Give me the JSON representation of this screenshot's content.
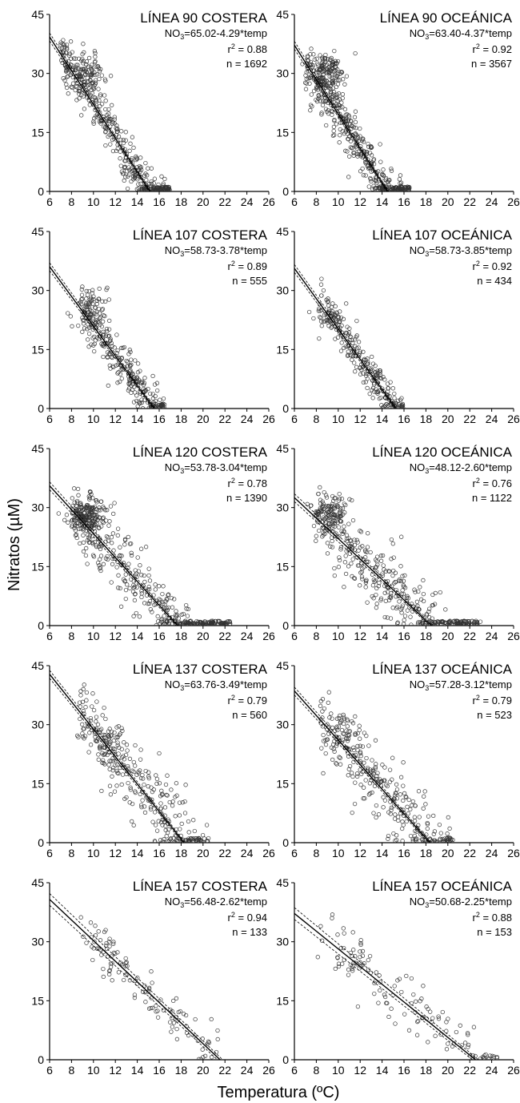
{
  "figure": {
    "ylabel": "Nitratos (µM)",
    "xlabel": "Temperatura (ºC)",
    "eq_prefix": "NO",
    "eq_sub": "3",
    "r_prefix": "r",
    "r_sup": "2",
    "n_prefix": "n = ",
    "colors": {
      "point": "#333333",
      "line": "#000000",
      "axis": "#000000"
    }
  },
  "chart_data": [
    {
      "type": "scatter",
      "title": "LÍNEA 90 COSTERA",
      "equation": "=65.02-4.29*temp",
      "intercept": 65.02,
      "slope": -4.29,
      "r2": "0.88",
      "n": "1692",
      "x_range": [
        6,
        26
      ],
      "y_range": [
        0,
        45
      ],
      "x_ticks": [
        6,
        8,
        10,
        12,
        14,
        16,
        18,
        20,
        22,
        24,
        26
      ],
      "y_ticks": [
        0,
        15,
        30,
        45
      ],
      "spread": [
        7,
        17
      ],
      "band": 1.0,
      "cloud": {
        "xmin": 7.0,
        "xmax": 17.0,
        "sd": 3.5,
        "count": 450,
        "cluster": [
          9.5,
          30,
          20
        ]
      }
    },
    {
      "type": "scatter",
      "title": "LÍNEA 90 OCEÁNICA",
      "equation": "=63.40-4.37*temp",
      "intercept": 63.4,
      "slope": -4.37,
      "r2": "0.92",
      "n": "3567",
      "x_range": [
        6,
        26
      ],
      "y_range": [
        0,
        45
      ],
      "x_ticks": [
        6,
        8,
        10,
        12,
        14,
        16,
        18,
        20,
        22,
        24,
        26
      ],
      "y_ticks": [
        0,
        15,
        30,
        45
      ],
      "spread": [
        7,
        16.5
      ],
      "band": 1.0,
      "cloud": {
        "xmin": 7.0,
        "xmax": 16.5,
        "sd": 3.3,
        "count": 550,
        "cluster": [
          9.0,
          30,
          25
        ]
      }
    },
    {
      "type": "scatter",
      "title": "LÍNEA 107 COSTERA",
      "equation": "=58.73-3.78*temp",
      "intercept": 58.73,
      "slope": -3.78,
      "r2": "0.89",
      "n": "555",
      "x_range": [
        6,
        26
      ],
      "y_range": [
        0,
        45
      ],
      "x_ticks": [
        6,
        8,
        10,
        12,
        14,
        16,
        18,
        20,
        22,
        24,
        26
      ],
      "y_ticks": [
        0,
        15,
        30,
        45
      ],
      "spread": [
        8.8,
        16.5
      ],
      "band": 1.0,
      "cloud": {
        "xmin": 8.8,
        "xmax": 16.5,
        "sd": 2.8,
        "count": 320,
        "cluster": [
          9.8,
          26,
          20
        ]
      }
    },
    {
      "type": "scatter",
      "title": "LÍNEA 107 OCEÁNICA",
      "equation": "=58.73-3.85*temp",
      "intercept": 58.73,
      "slope": -3.85,
      "r2": "0.92",
      "n": "434",
      "x_range": [
        6,
        26
      ],
      "y_range": [
        0,
        45
      ],
      "x_ticks": [
        6,
        8,
        10,
        12,
        14,
        16,
        18,
        20,
        22,
        24,
        26
      ],
      "y_ticks": [
        0,
        15,
        30,
        45
      ],
      "spread": [
        8.2,
        16
      ],
      "band": 1.0,
      "cloud": {
        "xmin": 8.2,
        "xmax": 16.0,
        "sd": 2.5,
        "count": 260,
        "cluster": [
          9.5,
          24,
          10
        ]
      }
    },
    {
      "type": "scatter",
      "title": "LÍNEA 120 COSTERA",
      "equation": "=53.78-3.04*temp",
      "intercept": 53.78,
      "slope": -3.04,
      "r2": "0.78",
      "n": "1390",
      "x_range": [
        6,
        26
      ],
      "y_range": [
        0,
        45
      ],
      "x_ticks": [
        6,
        8,
        10,
        12,
        14,
        16,
        18,
        20,
        22,
        24,
        26
      ],
      "y_ticks": [
        0,
        15,
        30,
        45
      ],
      "spread": [
        8,
        22.5
      ],
      "band": 1.0,
      "cloud": {
        "xmin": 8.0,
        "xmax": 22.5,
        "sd": 4.2,
        "count": 550,
        "cluster": [
          9.5,
          28,
          30
        ]
      }
    },
    {
      "type": "scatter",
      "title": "LÍNEA 120 OCEÁNICA",
      "equation": "=48.12-2.60*temp",
      "intercept": 48.12,
      "slope": -2.6,
      "r2": "0.76",
      "n": "1122",
      "x_range": [
        6,
        26
      ],
      "y_range": [
        0,
        45
      ],
      "x_ticks": [
        6,
        8,
        10,
        12,
        14,
        16,
        18,
        20,
        22,
        24,
        26
      ],
      "y_ticks": [
        0,
        15,
        30,
        45
      ],
      "spread": [
        8,
        23
      ],
      "band": 1.0,
      "cloud": {
        "xmin": 8.0,
        "xmax": 23.0,
        "sd": 4.5,
        "count": 480,
        "cluster": [
          9.2,
          28,
          25
        ]
      }
    },
    {
      "type": "scatter",
      "title": "LÍNEA 137 COSTERA",
      "equation": "=63.76-3.49*temp",
      "intercept": 63.76,
      "slope": -3.49,
      "r2": "0.79",
      "n": "560",
      "x_range": [
        6,
        26
      ],
      "y_range": [
        0,
        45
      ],
      "x_ticks": [
        6,
        8,
        10,
        12,
        14,
        16,
        18,
        20,
        22,
        24,
        26
      ],
      "y_ticks": [
        0,
        15,
        30,
        45
      ],
      "spread": [
        8.5,
        20.5
      ],
      "band": 1.0,
      "cloud": {
        "xmin": 8.5,
        "xmax": 20.5,
        "sd": 5.0,
        "count": 330,
        "cluster": [
          11.5,
          26,
          15
        ]
      }
    },
    {
      "type": "scatter",
      "title": "LÍNEA 137 OCEÁNICA",
      "equation": "=57.28-3.12*temp",
      "intercept": 57.28,
      "slope": -3.12,
      "r2": "0.79",
      "n": "523",
      "x_range": [
        6,
        26
      ],
      "y_range": [
        0,
        45
      ],
      "x_ticks": [
        6,
        8,
        10,
        12,
        14,
        16,
        18,
        20,
        22,
        24,
        26
      ],
      "y_ticks": [
        0,
        15,
        30,
        45
      ],
      "spread": [
        8.3,
        20.5
      ],
      "band": 1.0,
      "cloud": {
        "xmin": 8.3,
        "xmax": 20.5,
        "sd": 5.0,
        "count": 320,
        "cluster": [
          10.5,
          27,
          15
        ]
      }
    },
    {
      "type": "scatter",
      "title": "LÍNEA 157 COSTERA",
      "equation": "=56.48-2.62*temp",
      "intercept": 56.48,
      "slope": -2.62,
      "r2": "0.94",
      "n": "133",
      "x_range": [
        6,
        26
      ],
      "y_range": [
        0,
        45
      ],
      "x_ticks": [
        6,
        8,
        10,
        12,
        14,
        16,
        18,
        20,
        22,
        24,
        26
      ],
      "y_ticks": [
        0,
        15,
        30,
        45
      ],
      "spread": [
        8.8,
        21.5
      ],
      "band": 1.5,
      "cloud": {
        "xmin": 8.8,
        "xmax": 21.5,
        "sd": 3.0,
        "count": 115,
        "cluster": [
          11.5,
          27,
          15
        ]
      }
    },
    {
      "type": "scatter",
      "title": "LÍNEA 157 OCEÁNICA",
      "equation": "=50.68-2.25*temp",
      "intercept": 50.68,
      "slope": -2.25,
      "r2": "0.88",
      "n": "153",
      "x_range": [
        6,
        26
      ],
      "y_range": [
        0,
        45
      ],
      "x_ticks": [
        6,
        8,
        10,
        12,
        14,
        16,
        18,
        20,
        22,
        24,
        26
      ],
      "y_ticks": [
        0,
        15,
        30,
        45
      ],
      "spread": [
        8,
        24.5
      ],
      "band": 1.5,
      "cloud": {
        "xmin": 8.0,
        "xmax": 24.5,
        "sd": 4.0,
        "count": 130,
        "cluster": [
          11.5,
          27,
          15
        ]
      }
    }
  ]
}
